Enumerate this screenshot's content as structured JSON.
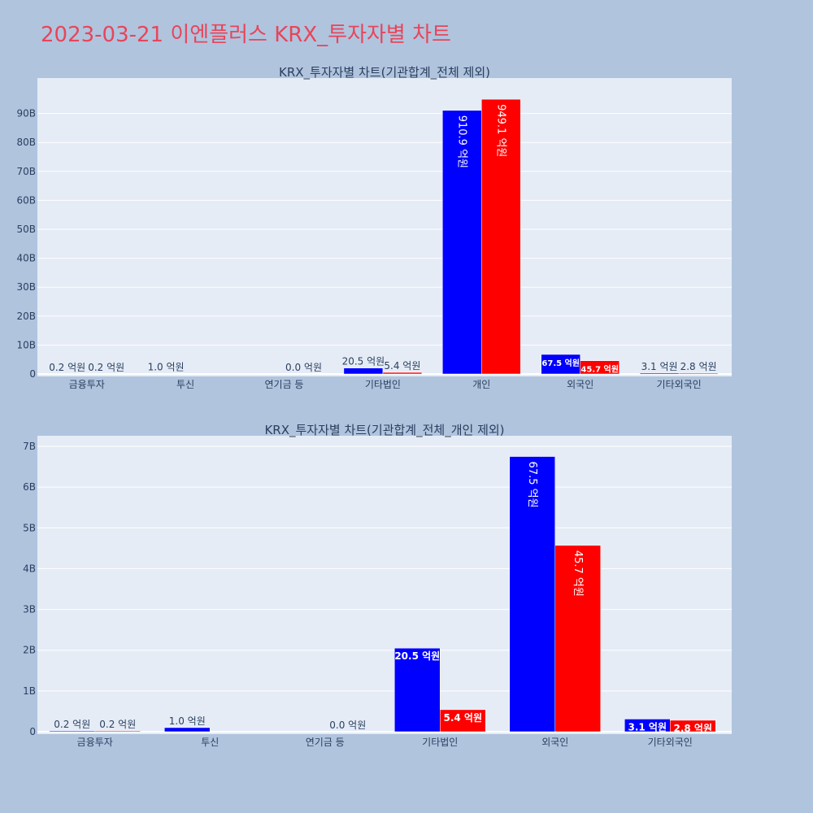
{
  "page_title": "2023-03-21 이엔플러스 KRX_투자자별 차트",
  "colors": {
    "buy": "#0000ff",
    "sell": "#ff0000",
    "title": "#e8455a",
    "background": "#b0c4de",
    "plot_bg": "#e5ecf6"
  },
  "chart_data": [
    {
      "type": "bar",
      "title": "KRX_투자자별 차트(기관합계_전체 제외)",
      "categories": [
        "금융투자",
        "투신",
        "연기금 등",
        "기타법인",
        "개인",
        "외국인",
        "기타외국인"
      ],
      "series": [
        {
          "values": [
            20000000,
            100000000,
            null,
            2050000000,
            91090000000,
            6750000000,
            310000000
          ],
          "labels": [
            "0.2 억원",
            "1.0 억원",
            "",
            "20.5 억원",
            "910.9 억원",
            "67.5 억원",
            "3.1 억원"
          ]
        },
        {
          "values": [
            20000000,
            null,
            0,
            540000000,
            94910000000,
            4570000000,
            280000000
          ],
          "labels": [
            "0.2 억원",
            "",
            "0.0 억원",
            "5.4 억원",
            "949.1 억원",
            "45.7 억원",
            "2.8 억원"
          ]
        }
      ],
      "yticks": [
        "0",
        "10B",
        "20B",
        "30B",
        "40B",
        "50B",
        "60B",
        "70B",
        "80B",
        "90B"
      ],
      "ylim": [
        0,
        100000000000
      ],
      "grid": true
    },
    {
      "type": "bar",
      "title": "KRX_투자자별 차트(기관합계_전체_개인 제외)",
      "categories": [
        "금융투자",
        "투신",
        "연기금 등",
        "기타법인",
        "외국인",
        "기타외국인"
      ],
      "series": [
        {
          "values": [
            20000000,
            100000000,
            null,
            2050000000,
            6750000000,
            310000000
          ],
          "labels": [
            "0.2 억원",
            "1.0 억원",
            "",
            "20.5 억원",
            "67.5 억원",
            "3.1 억원"
          ]
        },
        {
          "values": [
            20000000,
            null,
            0,
            540000000,
            4570000000,
            280000000
          ],
          "labels": [
            "0.2 억원",
            "",
            "0.0 억원",
            "5.4 억원",
            "45.7 억원",
            "2.8 억원"
          ]
        }
      ],
      "yticks": [
        "0",
        "1B",
        "2B",
        "3B",
        "4B",
        "5B",
        "6B",
        "7B"
      ],
      "ylim": [
        0,
        7100000000
      ],
      "grid": true
    }
  ]
}
